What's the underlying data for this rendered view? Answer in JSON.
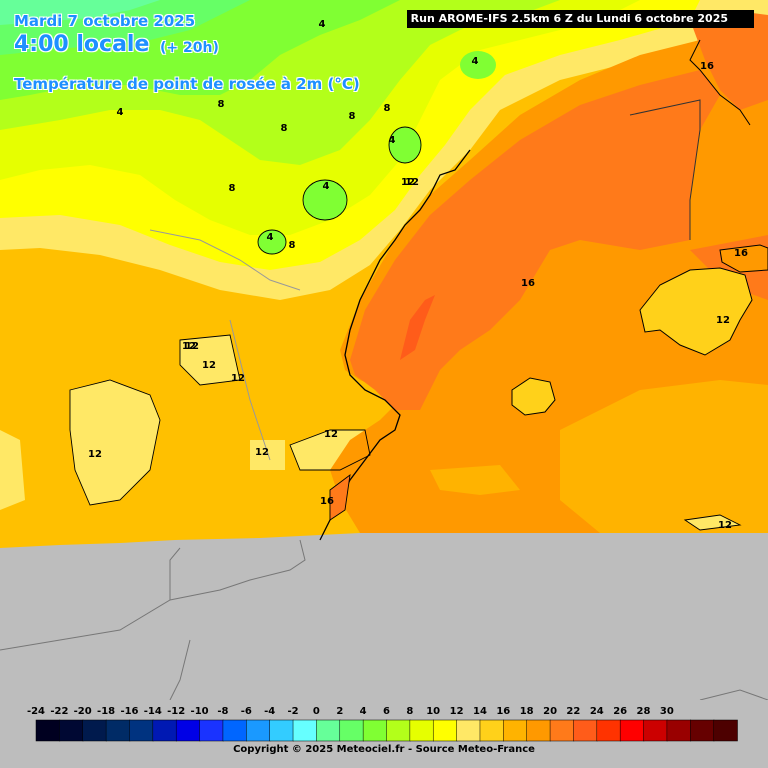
{
  "header": {
    "date": "Mardi 7 octobre 2025",
    "local_time": "4:00 locale",
    "lead_time": "(+ 20h)",
    "parameter": "Température de point de rosée à 2m (°C)",
    "run_info": "Run AROME-IFS 2.5km 6 Z du Lundi 6 octobre 2025"
  },
  "legend": {
    "values": [
      "-24",
      "-22",
      "-20",
      "-18",
      "-16",
      "-14",
      "-12",
      "-10",
      "-8",
      "-6",
      "-4",
      "-2",
      "0",
      "2",
      "4",
      "6",
      "8",
      "10",
      "12",
      "14",
      "16",
      "18",
      "20",
      "22",
      "24",
      "26",
      "28",
      "30"
    ],
    "colors": [
      "#000020",
      "#000833",
      "#001a4d",
      "#002b66",
      "#003380",
      "#0019b3",
      "#0000e6",
      "#1a33ff",
      "#0066ff",
      "#1a99ff",
      "#33ccff",
      "#66ffff",
      "#66ff99",
      "#66ff66",
      "#80ff33",
      "#b3ff1a",
      "#e6ff00",
      "#ffff00",
      "#ffe866",
      "#ffd11a",
      "#ffb300",
      "#ff9900",
      "#ff7a1a",
      "#ff5c1a",
      "#ff3300",
      "#ff0000",
      "#cc0000",
      "#990000",
      "#660000",
      "#4d0000"
    ]
  },
  "contour_labels": [
    "4",
    "4",
    "4",
    "4",
    "4",
    "4",
    "8",
    "8",
    "8",
    "8",
    "8",
    "8",
    "12",
    "12",
    "12",
    "12",
    "12",
    "12",
    "12",
    "12",
    "12",
    "12",
    "12",
    "16",
    "16",
    "16",
    "16"
  ],
  "copyright": "Copyright © 2025 Meteociel.fr - Source Meteo-France"
}
